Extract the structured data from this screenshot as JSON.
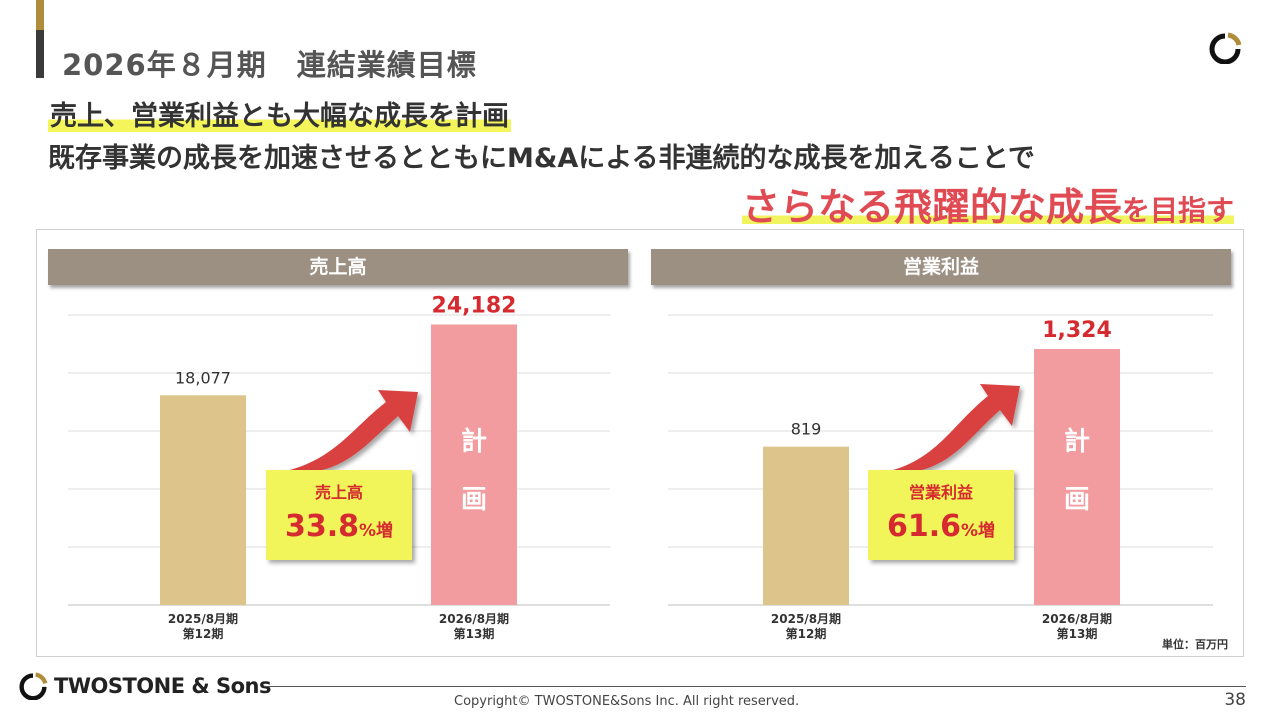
{
  "header": {
    "title": "2026年８月期　連結業績目標"
  },
  "headlines": {
    "line1": "売上、営業利益とも大幅な成長を計画",
    "line2": "既存事業の成長を加速させるとともにM&Aによる非連続的な成長を加えることで",
    "line3_big": "さらなる飛躍的な成長",
    "line3_small": "を目指す"
  },
  "colors": {
    "actual_bar": "#dcc48b",
    "plan_bar": "#f29c9f",
    "accent_red": "#d42a30",
    "callout_bg": "#f2f55a",
    "header_bg": "#9c9083"
  },
  "chart_data": [
    {
      "type": "bar",
      "title": "売上高",
      "categories": [
        "2025/8月期\n第12期",
        "2026/8月期\n第13期"
      ],
      "category_lines": [
        [
          "2025/8月期",
          "第12期"
        ],
        [
          "2026/8月期",
          "第13期"
        ]
      ],
      "values": [
        18077,
        24182
      ],
      "value_labels": [
        "18,077",
        "24,182"
      ],
      "plan_label": [
        "計",
        "画"
      ],
      "ylim": [
        0,
        25000
      ],
      "gridlines": [
        0,
        5000,
        10000,
        15000,
        20000,
        25000
      ],
      "callout": {
        "label": "売上高",
        "value": "33.8",
        "suffix": "%増"
      }
    },
    {
      "type": "bar",
      "title": "営業利益",
      "categories": [
        "2025/8月期\n第12期",
        "2026/8月期\n第13期"
      ],
      "category_lines": [
        [
          "2025/8月期",
          "第12期"
        ],
        [
          "2026/8月期",
          "第13期"
        ]
      ],
      "values": [
        819,
        1324
      ],
      "value_labels": [
        "819",
        "1,324"
      ],
      "plan_label": [
        "計",
        "画"
      ],
      "ylim": [
        0,
        1500
      ],
      "gridlines": [
        0,
        300,
        600,
        900,
        1200,
        1500
      ],
      "callout": {
        "label": "営業利益",
        "value": "61.6",
        "suffix": "%増"
      }
    }
  ],
  "unit_label": "単位：百万円",
  "footer": {
    "brand": "TWOSTONE & Sons",
    "copyright": "Copyright© TWOSTONE&Sons Inc. All right reserved.",
    "page_number": "38"
  }
}
